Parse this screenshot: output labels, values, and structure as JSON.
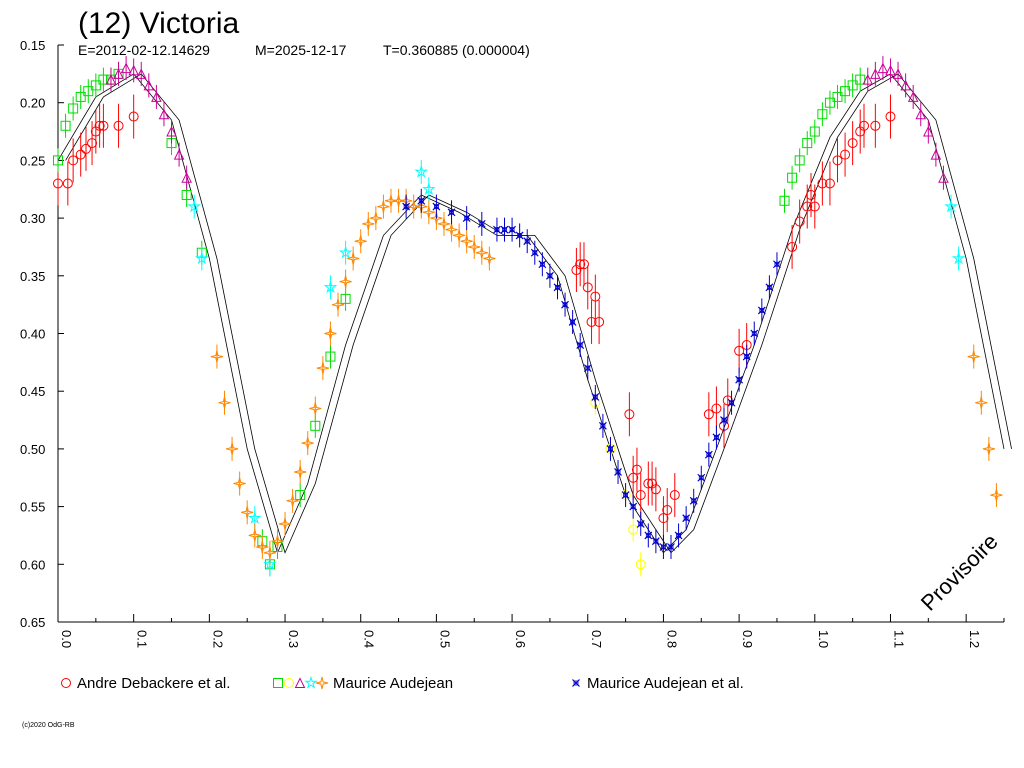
{
  "chart_data": {
    "type": "scatter",
    "title": "(12) Victoria",
    "subtitle": {
      "epoch": "E=2012-02-12.14629",
      "modified": "M=2025-12-17",
      "period": "T=0.360885 (0.000004)"
    },
    "xlabel": "",
    "ylabel": "",
    "xlim": [
      0.0,
      1.25
    ],
    "ylim": [
      0.15,
      0.65
    ],
    "y_inverted": true,
    "x_ticks": [
      "0.0",
      "0.1",
      "0.2",
      "0.3",
      "0.4",
      "0.5",
      "0.6",
      "0.7",
      "0.8",
      "0.9",
      "1.0",
      "1.1",
      "1.2"
    ],
    "y_ticks": [
      "0.15",
      "0.20",
      "0.25",
      "0.30",
      "0.35",
      "0.40",
      "0.45",
      "0.50",
      "0.55",
      "0.60",
      "0.65"
    ],
    "legend_placement": "bottom",
    "legend": [
      {
        "label": "Andre Debackere et al.",
        "markers": [
          "circle"
        ],
        "colors": [
          "#ff0000"
        ]
      },
      {
        "label": "Maurice Audejean",
        "markers": [
          "square",
          "circle",
          "triangle",
          "star",
          "star4"
        ],
        "colors": [
          "#00dd00",
          "#ffff00",
          "#cc0099",
          "#00ffff",
          "#ff8800"
        ]
      },
      {
        "label": "Maurice Audejean et al.",
        "markers": [
          "cross4"
        ],
        "colors": [
          "#0000cc"
        ]
      }
    ],
    "model_curve": {
      "color": "#000000",
      "x": [
        0.0,
        0.05,
        0.1,
        0.15,
        0.2,
        0.25,
        0.29,
        0.33,
        0.38,
        0.43,
        0.48,
        0.53,
        0.58,
        0.62,
        0.66,
        0.7,
        0.75,
        0.8,
        0.83,
        0.87,
        0.92,
        0.97,
        1.02,
        1.06,
        1.1,
        1.15,
        1.2,
        1.25
      ],
      "y": [
        0.25,
        0.195,
        0.175,
        0.215,
        0.335,
        0.5,
        0.59,
        0.53,
        0.41,
        0.315,
        0.28,
        0.295,
        0.315,
        0.315,
        0.35,
        0.44,
        0.54,
        0.59,
        0.57,
        0.5,
        0.41,
        0.31,
        0.23,
        0.19,
        0.175,
        0.215,
        0.335,
        0.5
      ]
    },
    "series": [
      {
        "name": "Andre Debackere et al.",
        "marker": "circle",
        "color": "#ff0000",
        "errorbar": true,
        "x": [
          0.0,
          0.013,
          0.02,
          0.03,
          0.037,
          0.045,
          0.05,
          0.055,
          0.06,
          0.08,
          0.1,
          0.685,
          0.69,
          0.695,
          0.7,
          0.705,
          0.71,
          0.715,
          0.755,
          0.76,
          0.765,
          0.77,
          0.78,
          0.785,
          0.79,
          0.8,
          0.805,
          0.815,
          0.86,
          0.87,
          0.88,
          0.885,
          0.9,
          0.91,
          0.97,
          0.98,
          0.99,
          0.995,
          1.0,
          1.01,
          1.02,
          1.03,
          1.04,
          1.05,
          1.06,
          1.065,
          1.08,
          1.1
        ],
        "y": [
          0.27,
          0.27,
          0.25,
          0.245,
          0.24,
          0.235,
          0.225,
          0.22,
          0.22,
          0.22,
          0.212,
          0.345,
          0.34,
          0.34,
          0.36,
          0.39,
          0.368,
          0.39,
          0.47,
          0.525,
          0.518,
          0.54,
          0.53,
          0.53,
          0.535,
          0.56,
          0.553,
          0.54,
          0.47,
          0.465,
          0.48,
          0.458,
          0.415,
          0.41,
          0.325,
          0.303,
          0.29,
          0.28,
          0.29,
          0.27,
          0.27,
          0.25,
          0.245,
          0.235,
          0.225,
          0.22,
          0.22,
          0.212
        ]
      },
      {
        "name": "Maurice Audejean",
        "marker": "square",
        "color": "#00dd00",
        "errorbar": true,
        "x": [
          0.0,
          0.01,
          0.02,
          0.03,
          0.04,
          0.05,
          0.06,
          0.07,
          0.08,
          0.15,
          0.17,
          0.19,
          0.27,
          0.28,
          0.29,
          0.32,
          0.34,
          0.36,
          0.38,
          0.96,
          0.97,
          0.98,
          0.99,
          1.0,
          1.01,
          1.02,
          1.03,
          1.04,
          1.05,
          1.06
        ],
        "y": [
          0.25,
          0.22,
          0.205,
          0.195,
          0.19,
          0.185,
          0.18,
          0.18,
          0.175,
          0.235,
          0.28,
          0.33,
          0.58,
          0.6,
          0.585,
          0.54,
          0.48,
          0.42,
          0.37,
          0.285,
          0.265,
          0.25,
          0.235,
          0.225,
          0.21,
          0.2,
          0.195,
          0.19,
          0.185,
          0.18
        ]
      },
      {
        "name": "Maurice Audejean",
        "marker": "circle",
        "color": "#ffff00",
        "errorbar": true,
        "x": [
          0.71,
          0.73,
          0.75,
          0.76,
          0.77
        ],
        "y": [
          0.46,
          0.5,
          0.54,
          0.57,
          0.6
        ]
      },
      {
        "name": "Maurice Audejean",
        "marker": "triangle",
        "color": "#cc0099",
        "errorbar": true,
        "x": [
          0.07,
          0.08,
          0.09,
          0.1,
          0.11,
          0.12,
          0.13,
          0.14,
          0.15,
          0.16,
          0.17,
          1.07,
          1.08,
          1.09,
          1.1,
          1.11,
          1.12,
          1.13,
          1.14,
          1.15,
          1.16,
          1.17
        ],
        "y": [
          0.18,
          0.175,
          0.17,
          0.172,
          0.175,
          0.185,
          0.195,
          0.21,
          0.225,
          0.245,
          0.265,
          0.18,
          0.175,
          0.17,
          0.172,
          0.175,
          0.185,
          0.195,
          0.21,
          0.225,
          0.245,
          0.265
        ]
      },
      {
        "name": "Maurice Audejean",
        "marker": "star",
        "color": "#00ffff",
        "errorbar": true,
        "x": [
          0.18,
          0.19,
          0.26,
          0.28,
          0.36,
          0.38,
          0.48,
          0.49,
          1.18,
          1.19
        ],
        "y": [
          0.29,
          0.335,
          0.56,
          0.6,
          0.36,
          0.33,
          0.26,
          0.275,
          0.29,
          0.335
        ]
      },
      {
        "name": "Maurice Audejean",
        "marker": "star4",
        "color": "#ff8800",
        "errorbar": true,
        "x": [
          0.21,
          0.22,
          0.23,
          0.24,
          0.25,
          0.26,
          0.27,
          0.28,
          0.29,
          0.3,
          0.31,
          0.32,
          0.33,
          0.34,
          0.35,
          0.36,
          0.37,
          0.38,
          0.39,
          0.4,
          0.41,
          0.42,
          0.43,
          0.44,
          0.45,
          0.46,
          0.47,
          0.48,
          0.49,
          0.5,
          0.51,
          0.52,
          0.53,
          0.54,
          0.55,
          0.56,
          0.57,
          1.21,
          1.22,
          1.23,
          1.24
        ],
        "y": [
          0.42,
          0.46,
          0.5,
          0.53,
          0.555,
          0.575,
          0.585,
          0.59,
          0.58,
          0.565,
          0.545,
          0.52,
          0.495,
          0.465,
          0.43,
          0.4,
          0.375,
          0.355,
          0.335,
          0.32,
          0.305,
          0.3,
          0.29,
          0.285,
          0.285,
          0.285,
          0.29,
          0.29,
          0.295,
          0.3,
          0.305,
          0.31,
          0.315,
          0.32,
          0.325,
          0.33,
          0.335,
          0.42,
          0.46,
          0.5,
          0.54
        ]
      },
      {
        "name": "Maurice Audejean et al.",
        "marker": "cross4",
        "color": "#0000cc",
        "errorbar": true,
        "x": [
          0.46,
          0.48,
          0.5,
          0.52,
          0.54,
          0.56,
          0.58,
          0.59,
          0.6,
          0.61,
          0.62,
          0.63,
          0.64,
          0.65,
          0.66,
          0.67,
          0.68,
          0.69,
          0.7,
          0.71,
          0.72,
          0.73,
          0.74,
          0.75,
          0.76,
          0.77,
          0.78,
          0.79,
          0.8,
          0.81,
          0.82,
          0.83,
          0.84,
          0.85,
          0.86,
          0.87,
          0.88,
          0.89,
          0.9,
          0.91,
          0.92,
          0.93,
          0.94,
          0.95
        ],
        "y": [
          0.29,
          0.285,
          0.29,
          0.295,
          0.3,
          0.305,
          0.31,
          0.31,
          0.31,
          0.315,
          0.32,
          0.33,
          0.34,
          0.35,
          0.36,
          0.375,
          0.39,
          0.41,
          0.43,
          0.455,
          0.48,
          0.5,
          0.52,
          0.54,
          0.55,
          0.565,
          0.575,
          0.58,
          0.585,
          0.585,
          0.575,
          0.56,
          0.545,
          0.525,
          0.505,
          0.49,
          0.475,
          0.46,
          0.44,
          0.42,
          0.4,
          0.38,
          0.36,
          0.34
        ]
      }
    ]
  },
  "watermark": "Provisoire",
  "copyright": "(c)2020 OdG-RB"
}
